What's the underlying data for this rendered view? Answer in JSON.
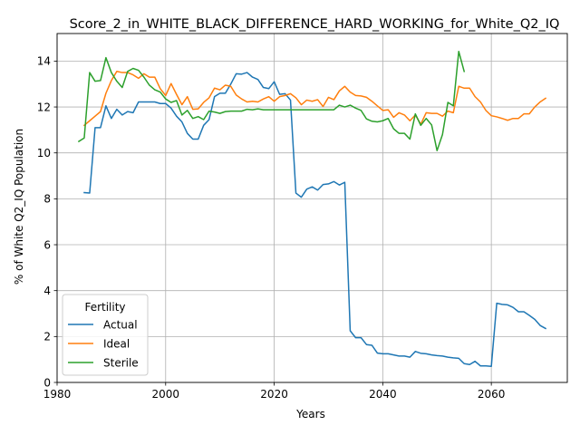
{
  "chart_data": {
    "type": "line",
    "title": "Score_2_in_WHITE_BLACK_DIFFERENCE_HARD_WORKING_for_White_Q2_IQ",
    "xlabel": "Years",
    "ylabel": "% of White Q2_IQ Population",
    "xlim": [
      1980,
      2074
    ],
    "ylim": [
      0,
      15.2
    ],
    "xticks": [
      1980,
      2000,
      2020,
      2040,
      2060
    ],
    "yticks": [
      0,
      2,
      4,
      6,
      8,
      10,
      12,
      14
    ],
    "grid": true,
    "legend": {
      "title": "Fertility",
      "placement": "lower-left"
    },
    "series": [
      {
        "name": "Actual",
        "color": "#1f77b4",
        "points": [
          [
            1985,
            8.27
          ],
          [
            1986,
            8.25
          ],
          [
            1987,
            11.1
          ],
          [
            1988,
            11.1
          ],
          [
            1989,
            12.05
          ],
          [
            1990,
            11.5
          ],
          [
            1991,
            11.9
          ],
          [
            1992,
            11.65
          ],
          [
            1993,
            11.8
          ],
          [
            1994,
            11.75
          ],
          [
            1995,
            12.22
          ],
          [
            1996,
            12.22
          ],
          [
            1997,
            12.22
          ],
          [
            1998,
            12.22
          ],
          [
            1999,
            12.15
          ],
          [
            2000,
            12.15
          ],
          [
            2001,
            11.95
          ],
          [
            2002,
            11.6
          ],
          [
            2003,
            11.35
          ],
          [
            2004,
            10.85
          ],
          [
            2005,
            10.6
          ],
          [
            2006,
            10.6
          ],
          [
            2007,
            11.2
          ],
          [
            2008,
            11.45
          ],
          [
            2009,
            12.45
          ],
          [
            2010,
            12.6
          ],
          [
            2011,
            12.6
          ],
          [
            2012,
            13.0
          ],
          [
            2013,
            13.45
          ],
          [
            2014,
            13.43
          ],
          [
            2015,
            13.5
          ],
          [
            2016,
            13.3
          ],
          [
            2017,
            13.2
          ],
          [
            2018,
            12.85
          ],
          [
            2019,
            12.8
          ],
          [
            2020,
            13.1
          ],
          [
            2021,
            12.55
          ],
          [
            2022,
            12.58
          ],
          [
            2023,
            12.3
          ],
          [
            2024,
            8.25
          ],
          [
            2025,
            8.07
          ],
          [
            2026,
            8.42
          ],
          [
            2027,
            8.52
          ],
          [
            2028,
            8.38
          ],
          [
            2029,
            8.62
          ],
          [
            2030,
            8.65
          ],
          [
            2031,
            8.75
          ],
          [
            2032,
            8.6
          ],
          [
            2033,
            8.72
          ],
          [
            2034,
            2.25
          ],
          [
            2035,
            1.95
          ],
          [
            2036,
            1.95
          ],
          [
            2037,
            1.65
          ],
          [
            2038,
            1.62
          ],
          [
            2039,
            1.28
          ],
          [
            2040,
            1.25
          ],
          [
            2041,
            1.25
          ],
          [
            2042,
            1.2
          ],
          [
            2043,
            1.15
          ],
          [
            2044,
            1.15
          ],
          [
            2045,
            1.1
          ],
          [
            2046,
            1.35
          ],
          [
            2047,
            1.27
          ],
          [
            2048,
            1.25
          ],
          [
            2049,
            1.2
          ],
          [
            2050,
            1.17
          ],
          [
            2051,
            1.15
          ],
          [
            2052,
            1.1
          ],
          [
            2053,
            1.07
          ],
          [
            2054,
            1.05
          ],
          [
            2055,
            0.82
          ],
          [
            2056,
            0.78
          ],
          [
            2057,
            0.92
          ],
          [
            2058,
            0.72
          ],
          [
            2059,
            0.72
          ],
          [
            2060,
            0.7
          ],
          [
            2061,
            3.45
          ],
          [
            2062,
            3.4
          ],
          [
            2063,
            3.38
          ],
          [
            2064,
            3.27
          ],
          [
            2065,
            3.08
          ],
          [
            2066,
            3.08
          ],
          [
            2067,
            2.92
          ],
          [
            2068,
            2.75
          ],
          [
            2069,
            2.48
          ],
          [
            2070,
            2.35
          ]
        ]
      },
      {
        "name": "Ideal",
        "color": "#ff7f0e",
        "points": [
          [
            1985,
            11.2
          ],
          [
            1986,
            11.4
          ],
          [
            1987,
            11.6
          ],
          [
            1988,
            11.8
          ],
          [
            1989,
            12.6
          ],
          [
            1990,
            13.15
          ],
          [
            1991,
            13.55
          ],
          [
            1992,
            13.5
          ],
          [
            1993,
            13.5
          ],
          [
            1994,
            13.4
          ],
          [
            1995,
            13.25
          ],
          [
            1996,
            13.45
          ],
          [
            1997,
            13.3
          ],
          [
            1998,
            13.3
          ],
          [
            1999,
            12.8
          ],
          [
            2000,
            12.5
          ],
          [
            2001,
            13.02
          ],
          [
            2002,
            12.55
          ],
          [
            2003,
            12.1
          ],
          [
            2004,
            12.45
          ],
          [
            2005,
            11.9
          ],
          [
            2006,
            11.92
          ],
          [
            2007,
            12.2
          ],
          [
            2008,
            12.4
          ],
          [
            2009,
            12.82
          ],
          [
            2010,
            12.75
          ],
          [
            2011,
            12.95
          ],
          [
            2012,
            12.9
          ],
          [
            2013,
            12.52
          ],
          [
            2014,
            12.35
          ],
          [
            2015,
            12.22
          ],
          [
            2016,
            12.25
          ],
          [
            2017,
            12.22
          ],
          [
            2018,
            12.35
          ],
          [
            2019,
            12.45
          ],
          [
            2020,
            12.25
          ],
          [
            2021,
            12.45
          ],
          [
            2022,
            12.5
          ],
          [
            2023,
            12.58
          ],
          [
            2024,
            12.4
          ],
          [
            2025,
            12.1
          ],
          [
            2026,
            12.3
          ],
          [
            2027,
            12.25
          ],
          [
            2028,
            12.32
          ],
          [
            2029,
            12.02
          ],
          [
            2030,
            12.42
          ],
          [
            2031,
            12.32
          ],
          [
            2032,
            12.7
          ],
          [
            2033,
            12.9
          ],
          [
            2034,
            12.65
          ],
          [
            2035,
            12.5
          ],
          [
            2036,
            12.48
          ],
          [
            2037,
            12.42
          ],
          [
            2038,
            12.25
          ],
          [
            2039,
            12.05
          ],
          [
            2040,
            11.85
          ],
          [
            2041,
            11.88
          ],
          [
            2042,
            11.55
          ],
          [
            2043,
            11.75
          ],
          [
            2044,
            11.65
          ],
          [
            2045,
            11.4
          ],
          [
            2046,
            11.65
          ],
          [
            2047,
            11.25
          ],
          [
            2048,
            11.75
          ],
          [
            2049,
            11.72
          ],
          [
            2050,
            11.72
          ],
          [
            2051,
            11.6
          ],
          [
            2052,
            11.82
          ],
          [
            2053,
            11.75
          ],
          [
            2054,
            12.9
          ],
          [
            2055,
            12.82
          ],
          [
            2056,
            12.82
          ],
          [
            2057,
            12.45
          ],
          [
            2058,
            12.22
          ],
          [
            2059,
            11.85
          ],
          [
            2060,
            11.62
          ],
          [
            2061,
            11.57
          ],
          [
            2062,
            11.5
          ],
          [
            2063,
            11.42
          ],
          [
            2064,
            11.5
          ],
          [
            2065,
            11.5
          ],
          [
            2066,
            11.7
          ],
          [
            2067,
            11.7
          ],
          [
            2068,
            12.0
          ],
          [
            2069,
            12.22
          ],
          [
            2070,
            12.38
          ]
        ]
      },
      {
        "name": "Sterile",
        "color": "#2ca02c",
        "points": [
          [
            1984,
            10.5
          ],
          [
            1985,
            10.65
          ],
          [
            1986,
            13.5
          ],
          [
            1987,
            13.12
          ],
          [
            1988,
            13.15
          ],
          [
            1989,
            14.15
          ],
          [
            1990,
            13.5
          ],
          [
            1991,
            13.12
          ],
          [
            1992,
            12.85
          ],
          [
            1993,
            13.55
          ],
          [
            1994,
            13.68
          ],
          [
            1995,
            13.6
          ],
          [
            1996,
            13.3
          ],
          [
            1997,
            12.95
          ],
          [
            1998,
            12.75
          ],
          [
            1999,
            12.65
          ],
          [
            2000,
            12.35
          ],
          [
            2001,
            12.2
          ],
          [
            2002,
            12.28
          ],
          [
            2003,
            11.65
          ],
          [
            2004,
            11.85
          ],
          [
            2005,
            11.5
          ],
          [
            2006,
            11.58
          ],
          [
            2007,
            11.45
          ],
          [
            2008,
            11.82
          ],
          [
            2009,
            11.78
          ],
          [
            2010,
            11.72
          ],
          [
            2011,
            11.8
          ],
          [
            2012,
            11.82
          ],
          [
            2013,
            11.82
          ],
          [
            2014,
            11.82
          ],
          [
            2015,
            11.9
          ],
          [
            2016,
            11.88
          ],
          [
            2017,
            11.92
          ],
          [
            2018,
            11.88
          ],
          [
            2019,
            11.88
          ],
          [
            2020,
            11.88
          ],
          [
            2021,
            11.88
          ],
          [
            2022,
            11.88
          ],
          [
            2023,
            11.88
          ],
          [
            2024,
            11.88
          ],
          [
            2025,
            11.88
          ],
          [
            2026,
            11.88
          ],
          [
            2027,
            11.88
          ],
          [
            2028,
            11.88
          ],
          [
            2029,
            11.88
          ],
          [
            2030,
            11.88
          ],
          [
            2031,
            11.88
          ],
          [
            2032,
            12.08
          ],
          [
            2033,
            12.0
          ],
          [
            2034,
            12.08
          ],
          [
            2035,
            11.95
          ],
          [
            2036,
            11.85
          ],
          [
            2037,
            11.48
          ],
          [
            2038,
            11.38
          ],
          [
            2039,
            11.35
          ],
          [
            2040,
            11.4
          ],
          [
            2041,
            11.5
          ],
          [
            2042,
            11.05
          ],
          [
            2043,
            10.85
          ],
          [
            2044,
            10.85
          ],
          [
            2045,
            10.6
          ],
          [
            2046,
            11.7
          ],
          [
            2047,
            11.2
          ],
          [
            2048,
            11.5
          ],
          [
            2049,
            11.22
          ],
          [
            2050,
            10.1
          ],
          [
            2051,
            10.8
          ],
          [
            2052,
            12.2
          ],
          [
            2053,
            12.05
          ],
          [
            2054,
            14.42
          ],
          [
            2055,
            13.55
          ]
        ]
      }
    ]
  }
}
